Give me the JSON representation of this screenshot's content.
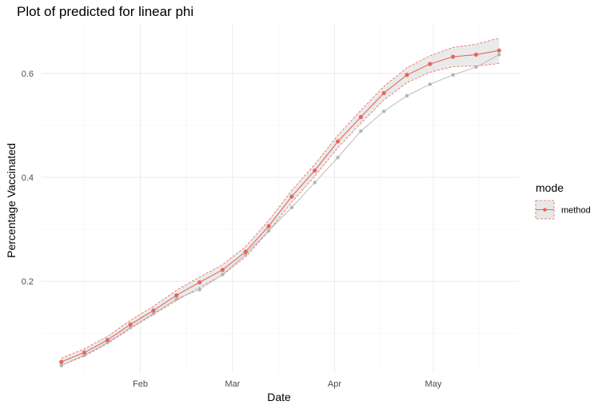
{
  "chart_data": {
    "type": "line",
    "title": "Plot of predicted for linear phi",
    "xlabel": "Date",
    "ylabel": "Percentage Vaccinated",
    "x": [
      "2021-01-08",
      "2021-01-15",
      "2021-01-22",
      "2021-01-29",
      "2021-02-05",
      "2021-02-12",
      "2021-02-19",
      "2021-02-26",
      "2021-03-05",
      "2021-03-12",
      "2021-03-19",
      "2021-03-26",
      "2021-04-02",
      "2021-04-09",
      "2021-04-16",
      "2021-04-23",
      "2021-04-30",
      "2021-05-07",
      "2021-05-14",
      "2021-05-21"
    ],
    "xlim": [
      "2021-01-02",
      "2021-05-27"
    ],
    "x_ticks": [
      {
        "date": "2021-02-01",
        "label": "Feb"
      },
      {
        "date": "2021-03-01",
        "label": "Mar"
      },
      {
        "date": "2021-04-01",
        "label": "Apr"
      },
      {
        "date": "2021-05-01",
        "label": "May"
      }
    ],
    "x_minor_ticks": [
      "2021-01-15",
      "2021-02-15",
      "2021-03-15",
      "2021-04-15",
      "2021-05-15"
    ],
    "ylim": [
      0.025,
      0.695
    ],
    "y_ticks": [
      0.2,
      0.4,
      0.6
    ],
    "y_minor_ticks": [
      0.1,
      0.3,
      0.5
    ],
    "grid": true,
    "series": [
      {
        "role": "observed",
        "color": "#b3b3b3",
        "values": [
          0.038,
          0.058,
          0.082,
          0.111,
          0.138,
          0.166,
          0.184,
          0.213,
          0.252,
          0.297,
          0.342,
          0.39,
          0.438,
          0.489,
          0.527,
          0.557,
          0.579,
          0.597,
          0.612,
          0.636
        ]
      },
      {
        "role": "predicted",
        "name": "method",
        "color": "#e8665a",
        "values": [
          0.045,
          0.063,
          0.087,
          0.117,
          0.144,
          0.173,
          0.198,
          0.222,
          0.257,
          0.306,
          0.363,
          0.413,
          0.469,
          0.516,
          0.562,
          0.597,
          0.618,
          0.632,
          0.636,
          0.644
        ],
        "lower": [
          0.038,
          0.056,
          0.08,
          0.109,
          0.136,
          0.163,
          0.188,
          0.212,
          0.247,
          0.296,
          0.352,
          0.402,
          0.457,
          0.504,
          0.549,
          0.582,
          0.602,
          0.613,
          0.614,
          0.619
        ],
        "upper": [
          0.052,
          0.07,
          0.094,
          0.125,
          0.152,
          0.183,
          0.208,
          0.232,
          0.267,
          0.317,
          0.375,
          0.425,
          0.481,
          0.529,
          0.575,
          0.611,
          0.634,
          0.65,
          0.656,
          0.668
        ]
      }
    ],
    "legend": {
      "title": "mode",
      "position": "right",
      "items": [
        "method"
      ]
    }
  }
}
